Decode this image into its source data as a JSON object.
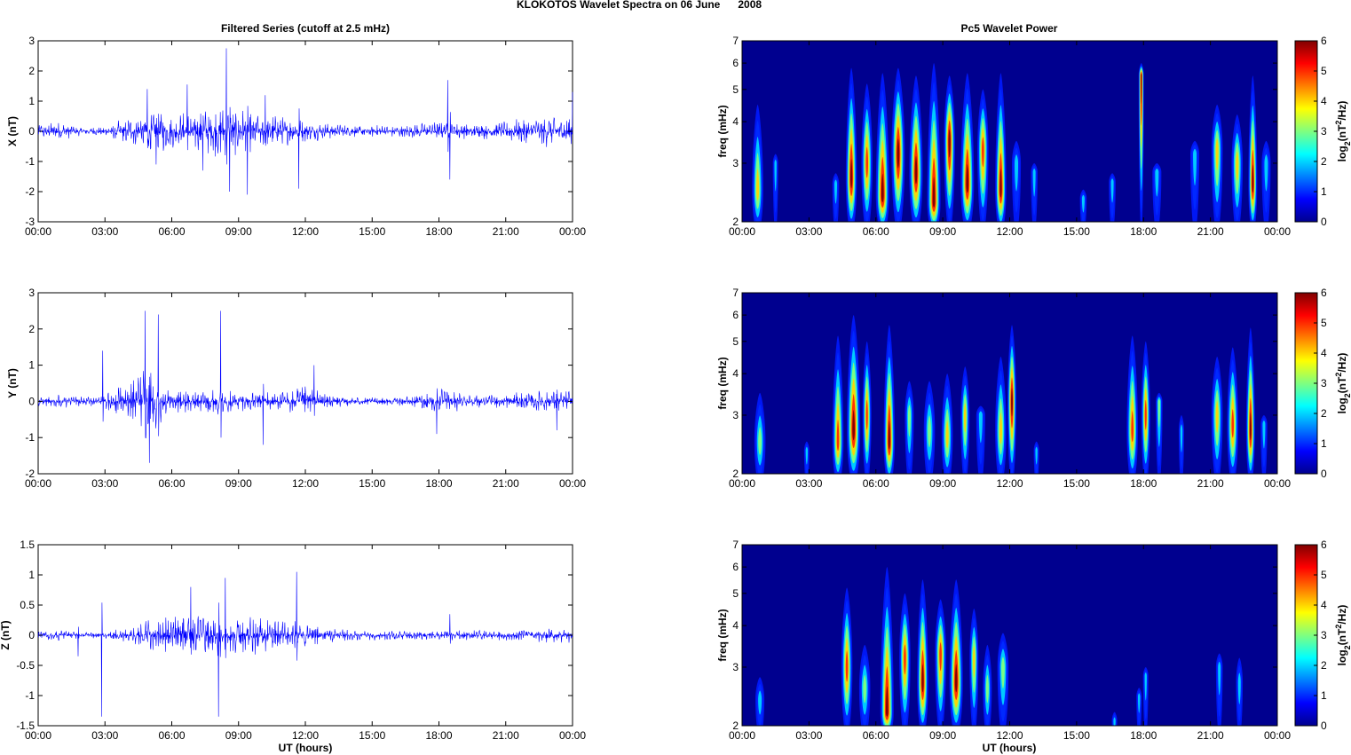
{
  "figure": {
    "suptitle": "KLOKOTOS Wavelet Spectra on 06 June      2008",
    "left_title": "Filtered Series (cutoff at 2.5 mHz)",
    "right_title": "Pc5 Wavelet Power",
    "xlabel": "UT (hours)"
  },
  "chart_data": [
    {
      "type": "line",
      "panel": "X",
      "title": "Filtered Series (cutoff at 2.5 mHz)",
      "ylabel": "X (nT)",
      "xlabel": "",
      "xlim": [
        0,
        24
      ],
      "ylim": [
        -3,
        3
      ],
      "xticks": [
        "00:00",
        "03:00",
        "06:00",
        "09:00",
        "12:00",
        "15:00",
        "18:00",
        "21:00",
        "00:00"
      ],
      "yticks": [
        "-3",
        "-2",
        "-1",
        "0",
        "1",
        "2",
        "3"
      ],
      "line_color": "#0000ff",
      "envelope": [
        [
          0,
          0.25
        ],
        [
          1,
          0.3
        ],
        [
          2,
          0.12
        ],
        [
          3,
          0.15
        ],
        [
          4,
          0.45
        ],
        [
          4.8,
          0.6
        ],
        [
          5.5,
          0.7
        ],
        [
          6,
          0.55
        ],
        [
          7,
          0.65
        ],
        [
          8,
          0.8
        ],
        [
          9,
          0.75
        ],
        [
          10,
          0.55
        ],
        [
          11,
          0.45
        ],
        [
          12,
          0.35
        ],
        [
          13,
          0.25
        ],
        [
          14,
          0.2
        ],
        [
          15,
          0.2
        ],
        [
          16,
          0.18
        ],
        [
          17,
          0.25
        ],
        [
          18,
          0.3
        ],
        [
          19,
          0.25
        ],
        [
          20,
          0.25
        ],
        [
          21,
          0.3
        ],
        [
          22,
          0.45
        ],
        [
          23,
          0.5
        ],
        [
          24,
          0.5
        ]
      ],
      "spikes": [
        [
          4.9,
          1.4
        ],
        [
          5.3,
          -1.1
        ],
        [
          6.7,
          1.55
        ],
        [
          7.4,
          -1.3
        ],
        [
          8.45,
          2.75
        ],
        [
          8.6,
          -2.0
        ],
        [
          9.4,
          -2.1
        ],
        [
          10.2,
          1.2
        ],
        [
          11.7,
          -1.9
        ],
        [
          18.4,
          1.7
        ],
        [
          18.5,
          -1.6
        ],
        [
          24,
          1.3
        ]
      ]
    },
    {
      "type": "heatmap",
      "panel": "X",
      "title": "Pc5 Wavelet Power",
      "ylabel": "freq (mHz)",
      "xlim": [
        0,
        24
      ],
      "ylim": [
        2,
        7
      ],
      "yscale": "log",
      "xticks": [
        "00:00",
        "03:00",
        "06:00",
        "09:00",
        "12:00",
        "15:00",
        "18:00",
        "21:00",
        "00:00"
      ],
      "yticks": [
        "2",
        "3",
        "4",
        "5",
        "6",
        "7"
      ],
      "colorbar": {
        "label": "log2(nT^2/Hz)",
        "min": 0,
        "max": 6,
        "ticks": [
          "0",
          "1",
          "2",
          "3",
          "4",
          "5",
          "6"
        ]
      },
      "blobs": [
        [
          0.7,
          2.5,
          0.25,
          4.5,
          4
        ],
        [
          1.5,
          3,
          0.12,
          3.2,
          2
        ],
        [
          4.2,
          2.6,
          0.15,
          2.8,
          2
        ],
        [
          4.9,
          2.7,
          0.25,
          5.8,
          6
        ],
        [
          5.6,
          3,
          0.25,
          5.2,
          5
        ],
        [
          6.3,
          2.4,
          0.3,
          5.6,
          6
        ],
        [
          7,
          3.2,
          0.3,
          5.8,
          6
        ],
        [
          7.8,
          2.8,
          0.3,
          5.5,
          6
        ],
        [
          8.6,
          2.3,
          0.3,
          6,
          6
        ],
        [
          9.3,
          3.5,
          0.25,
          5.5,
          6
        ],
        [
          10.1,
          2.6,
          0.3,
          5.6,
          6
        ],
        [
          10.8,
          3.3,
          0.25,
          5,
          5
        ],
        [
          11.6,
          2.5,
          0.25,
          5.6,
          6
        ],
        [
          12.3,
          3,
          0.2,
          3.5,
          2
        ],
        [
          13.1,
          3.2,
          0.15,
          3,
          2
        ],
        [
          15.3,
          3.5,
          0.15,
          2.5,
          2
        ],
        [
          16.6,
          3.2,
          0.15,
          2.8,
          2
        ],
        [
          17.9,
          5.5,
          0.08,
          6,
          6
        ],
        [
          18.6,
          3,
          0.2,
          3,
          2
        ],
        [
          20.3,
          3.2,
          0.2,
          3.5,
          2
        ],
        [
          21.3,
          3.3,
          0.25,
          4.5,
          4
        ],
        [
          22.2,
          3,
          0.25,
          4.2,
          4
        ],
        [
          22.9,
          2.6,
          0.2,
          5.5,
          6
        ],
        [
          23.5,
          3,
          0.2,
          3.5,
          2
        ]
      ]
    },
    {
      "type": "line",
      "panel": "Y",
      "title": "",
      "ylabel": "Y (nT)",
      "xlabel": "",
      "xlim": [
        0,
        24
      ],
      "ylim": [
        -2,
        3
      ],
      "xticks": [
        "00:00",
        "03:00",
        "06:00",
        "09:00",
        "12:00",
        "15:00",
        "18:00",
        "21:00",
        "00:00"
      ],
      "yticks": [
        "-2",
        "-1",
        "0",
        "1",
        "2",
        "3"
      ],
      "line_color": "#0000ff",
      "envelope": [
        [
          0,
          0.15
        ],
        [
          1,
          0.2
        ],
        [
          2,
          0.12
        ],
        [
          2.8,
          0.15
        ],
        [
          3.5,
          0.35
        ],
        [
          4.5,
          0.8
        ],
        [
          5,
          1.0
        ],
        [
          5.5,
          0.55
        ],
        [
          6,
          0.35
        ],
        [
          7,
          0.3
        ],
        [
          8,
          0.35
        ],
        [
          9,
          0.25
        ],
        [
          10,
          0.25
        ],
        [
          11,
          0.25
        ],
        [
          12,
          0.45
        ],
        [
          13,
          0.2
        ],
        [
          14,
          0.12
        ],
        [
          15,
          0.1
        ],
        [
          16,
          0.1
        ],
        [
          17,
          0.15
        ],
        [
          18,
          0.35
        ],
        [
          19,
          0.25
        ],
        [
          20,
          0.15
        ],
        [
          21,
          0.2
        ],
        [
          22,
          0.25
        ],
        [
          23,
          0.3
        ],
        [
          24,
          0.3
        ]
      ],
      "spikes": [
        [
          2.9,
          1.4
        ],
        [
          4.8,
          2.5
        ],
        [
          5.0,
          -1.7
        ],
        [
          5.4,
          2.4
        ],
        [
          8.2,
          2.5
        ],
        [
          10.1,
          -1.2
        ],
        [
          12.4,
          1.0
        ],
        [
          17.9,
          -0.9
        ],
        [
          23.3,
          -0.8
        ]
      ]
    },
    {
      "type": "heatmap",
      "panel": "Y",
      "title": "",
      "ylabel": "freq (mHz)",
      "xlim": [
        0,
        24
      ],
      "ylim": [
        2,
        7
      ],
      "yscale": "log",
      "xticks": [
        "00:00",
        "03:00",
        "06:00",
        "09:00",
        "12:00",
        "15:00",
        "18:00",
        "21:00",
        "00:00"
      ],
      "yticks": [
        "2",
        "3",
        "4",
        "5",
        "6",
        "7"
      ],
      "colorbar": {
        "label": "log2(nT^2/Hz)",
        "min": 0,
        "max": 6,
        "ticks": [
          "0",
          "1",
          "2",
          "3",
          "4",
          "5",
          "6"
        ]
      },
      "blobs": [
        [
          0.8,
          2.5,
          0.25,
          3.5,
          3
        ],
        [
          2.9,
          3,
          0.1,
          2.5,
          2
        ],
        [
          4.3,
          2.5,
          0.25,
          5.2,
          5
        ],
        [
          5,
          2.7,
          0.3,
          6,
          6
        ],
        [
          5.6,
          3,
          0.2,
          5,
          5
        ],
        [
          6.6,
          2.5,
          0.25,
          5.6,
          6
        ],
        [
          7.5,
          3,
          0.2,
          3.8,
          3
        ],
        [
          8.4,
          2.7,
          0.25,
          3.8,
          3
        ],
        [
          9.2,
          2.6,
          0.25,
          4,
          4
        ],
        [
          10,
          3,
          0.2,
          4.2,
          4
        ],
        [
          10.7,
          3.2,
          0.2,
          3.2,
          2
        ],
        [
          11.6,
          2.7,
          0.25,
          4.5,
          4
        ],
        [
          12.1,
          3.3,
          0.2,
          5.6,
          6
        ],
        [
          13.2,
          3.5,
          0.12,
          2.5,
          2
        ],
        [
          17.5,
          2.7,
          0.25,
          5.2,
          5
        ],
        [
          18.1,
          3,
          0.2,
          5,
          5
        ],
        [
          18.7,
          3.3,
          0.15,
          3.5,
          3
        ],
        [
          19.7,
          2.7,
          0.12,
          3,
          2
        ],
        [
          21.3,
          3,
          0.25,
          4.5,
          4
        ],
        [
          22,
          2.8,
          0.25,
          4.8,
          5
        ],
        [
          22.8,
          2.7,
          0.2,
          5.5,
          6
        ],
        [
          23.4,
          3.2,
          0.15,
          3,
          2
        ]
      ]
    },
    {
      "type": "line",
      "panel": "Z",
      "title": "",
      "ylabel": "Z (nT)",
      "xlabel": "UT (hours)",
      "xlim": [
        0,
        24
      ],
      "ylim": [
        -1.5,
        1.5
      ],
      "xticks": [
        "00:00",
        "03:00",
        "06:00",
        "09:00",
        "12:00",
        "15:00",
        "18:00",
        "21:00",
        "00:00"
      ],
      "yticks": [
        "-1.5",
        "-1",
        "-0.5",
        "0",
        "0.5",
        "1",
        "1.5"
      ],
      "line_color": "#0000ff",
      "envelope": [
        [
          0,
          0.08
        ],
        [
          1,
          0.08
        ],
        [
          2,
          0.05
        ],
        [
          3,
          0.05
        ],
        [
          4,
          0.12
        ],
        [
          5,
          0.25
        ],
        [
          6,
          0.3
        ],
        [
          7,
          0.4
        ],
        [
          8,
          0.35
        ],
        [
          9,
          0.3
        ],
        [
          10,
          0.3
        ],
        [
          11,
          0.25
        ],
        [
          12,
          0.2
        ],
        [
          13,
          0.12
        ],
        [
          14,
          0.08
        ],
        [
          15,
          0.08
        ],
        [
          16,
          0.08
        ],
        [
          17,
          0.07
        ],
        [
          18,
          0.08
        ],
        [
          19,
          0.08
        ],
        [
          20,
          0.08
        ],
        [
          21,
          0.08
        ],
        [
          22,
          0.1
        ],
        [
          23,
          0.12
        ],
        [
          24,
          0.12
        ]
      ],
      "spikes": [
        [
          1.8,
          -0.35
        ],
        [
          2.85,
          -1.35
        ],
        [
          6.85,
          0.8
        ],
        [
          8.1,
          -1.35
        ],
        [
          8.4,
          0.95
        ],
        [
          11.6,
          1.05
        ],
        [
          18.5,
          0.35
        ]
      ]
    },
    {
      "type": "heatmap",
      "panel": "Z",
      "title": "",
      "ylabel": "freq (mHz)",
      "xlim": [
        0,
        24
      ],
      "ylim": [
        2,
        7
      ],
      "yscale": "log",
      "xticks": [
        "00:00",
        "03:00",
        "06:00",
        "09:00",
        "12:00",
        "15:00",
        "18:00",
        "21:00",
        "00:00"
      ],
      "yticks": [
        "2",
        "3",
        "4",
        "5",
        "6",
        "7"
      ],
      "colorbar": {
        "label": "log2(nT^2/Hz)",
        "min": 0,
        "max": 6,
        "ticks": [
          "0",
          "1",
          "2",
          "3",
          "4",
          "5",
          "6"
        ]
      },
      "blobs": [
        [
          0.8,
          2.4,
          0.2,
          2.8,
          2
        ],
        [
          4.7,
          3,
          0.25,
          5.2,
          5
        ],
        [
          5.5,
          2.6,
          0.25,
          3.5,
          3
        ],
        [
          6.5,
          2.2,
          0.3,
          6,
          6
        ],
        [
          7.3,
          3.2,
          0.25,
          5,
          5
        ],
        [
          8.1,
          2.7,
          0.25,
          5.5,
          6
        ],
        [
          8.9,
          3.3,
          0.25,
          4.8,
          5
        ],
        [
          9.6,
          2.7,
          0.3,
          5.5,
          6
        ],
        [
          10.4,
          3.2,
          0.2,
          4.5,
          4
        ],
        [
          11,
          2.6,
          0.2,
          3.5,
          3
        ],
        [
          11.7,
          3,
          0.25,
          3.8,
          3
        ],
        [
          16.7,
          3.3,
          0.1,
          2.2,
          2
        ],
        [
          17.8,
          3,
          0.1,
          2.6,
          2
        ],
        [
          18.1,
          4.5,
          0.05,
          3,
          2
        ],
        [
          21.4,
          3,
          0.15,
          3.3,
          2
        ],
        [
          22.3,
          2.7,
          0.15,
          3.2,
          2
        ]
      ]
    }
  ]
}
